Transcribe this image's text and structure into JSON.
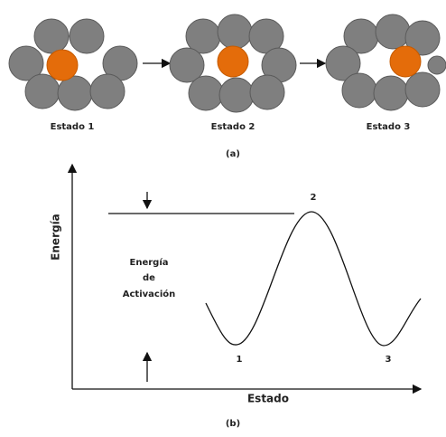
{
  "part_a": {
    "states": [
      "Estado 1",
      "Estado 2",
      "Estado 3"
    ],
    "caption": "(a)"
  },
  "part_b": {
    "y_axis_label": "Energía",
    "x_axis_label": "Estado",
    "annotation": [
      "Energía",
      "de",
      "Activación"
    ],
    "points": [
      "1",
      "2",
      "3"
    ],
    "caption": "(b)"
  }
}
